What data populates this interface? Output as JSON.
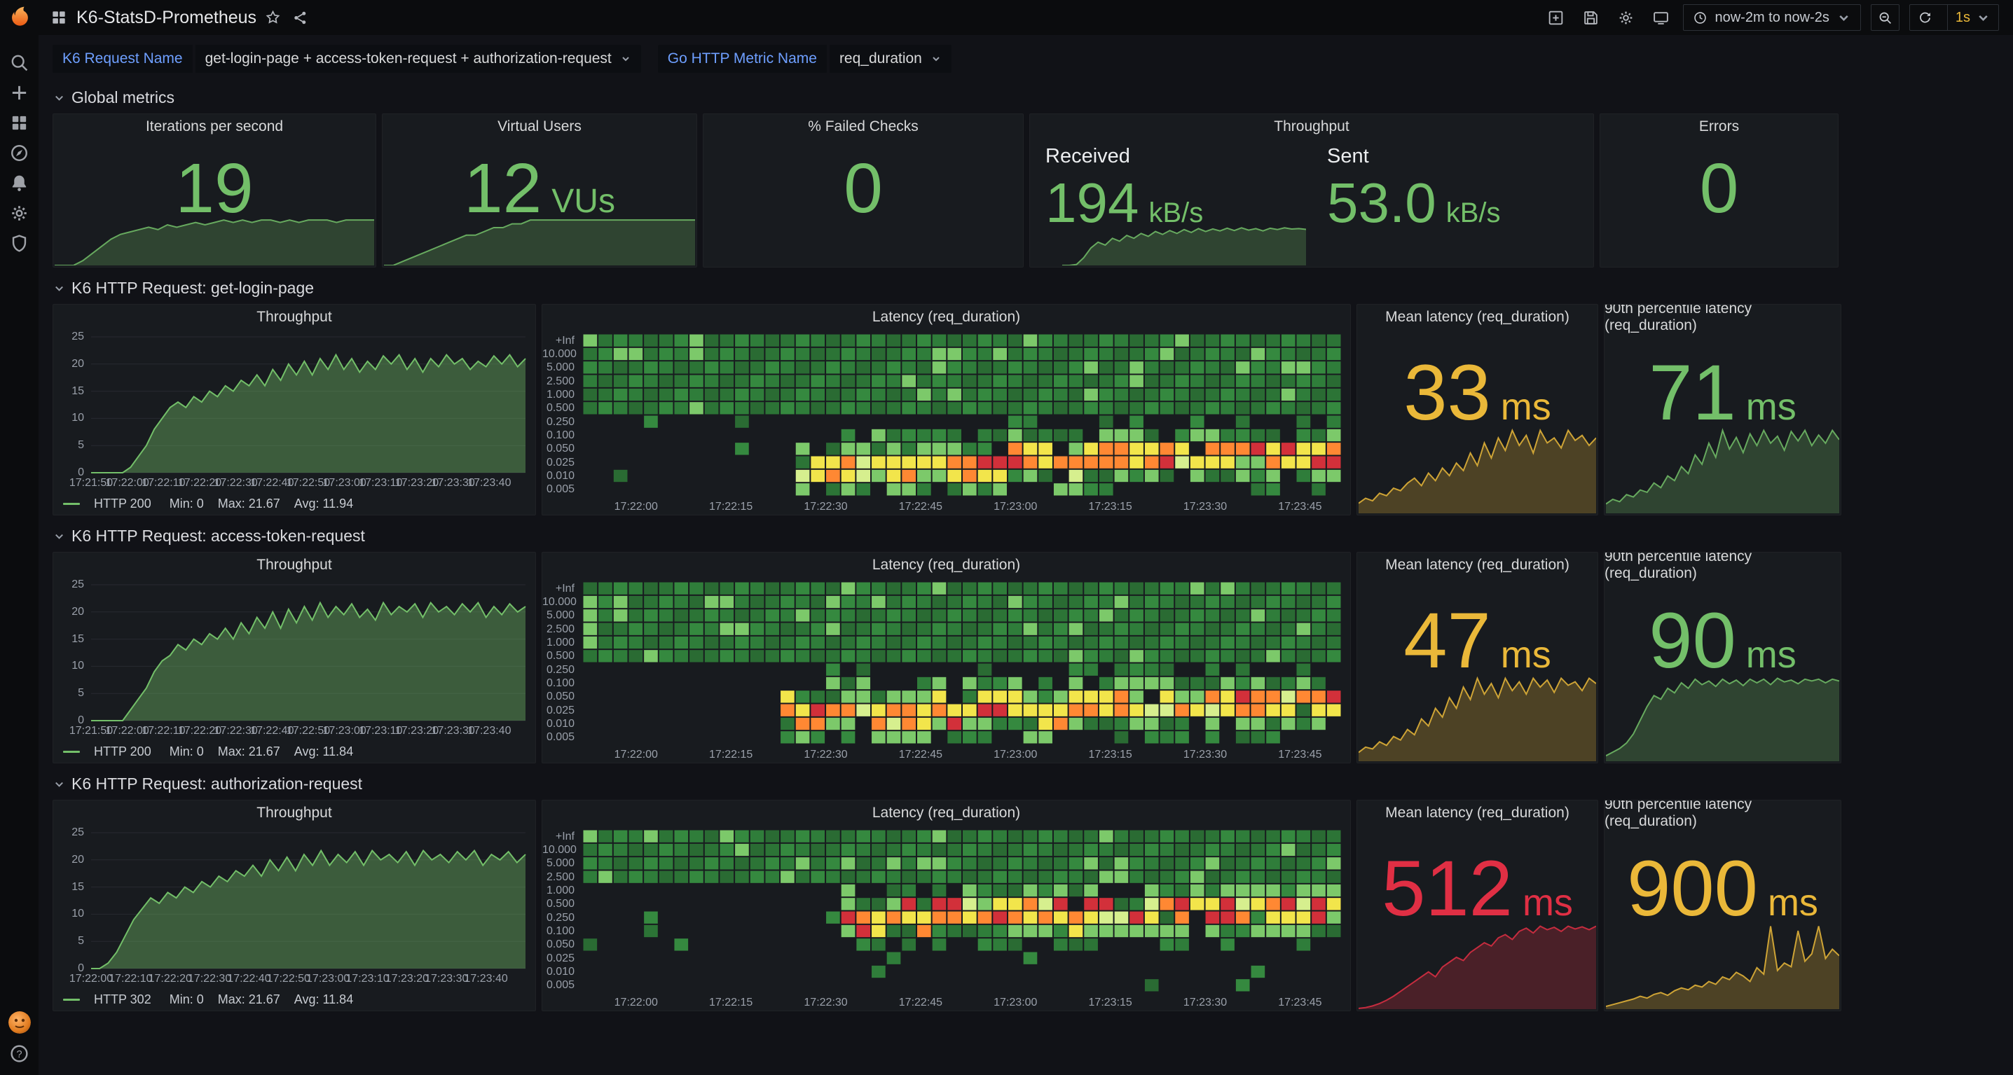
{
  "nav": {
    "title": "K6-StatsD-Prometheus",
    "time_range": "now-2m to now-2s",
    "refresh_interval": "1s"
  },
  "variables": [
    {
      "label": "K6 Request Name",
      "value": "get-login-page + access-token-request + authorization-request"
    },
    {
      "label": "Go HTTP Metric Name",
      "value": "req_duration"
    }
  ],
  "colors": {
    "green": "#73bf69",
    "yellow": "#eab839",
    "red": "#e02f44",
    "accent_blue": "#6e9fff",
    "panel_bg": "#181b1f",
    "page_bg": "#111217",
    "chrome_bg": "#0b0c0e",
    "heatmap": {
      "greens": [
        "#2a6b33",
        "#2f7d3a",
        "#35893f",
        "#2c7436"
      ],
      "light_green": "#7cc96a",
      "pale": "#d6ef8e",
      "yellow": "#f2e54b",
      "orange": "#ff8833",
      "red": "#d2303a"
    }
  },
  "global": {
    "label": "Global metrics",
    "panels": {
      "iterations": {
        "title": "Iterations per second",
        "value": "19",
        "color": "#73bf69",
        "spark": [
          0,
          0,
          0,
          2,
          5,
          8,
          11,
          13,
          14,
          15,
          16,
          15,
          17,
          16,
          17,
          18,
          17,
          18,
          19,
          18,
          19,
          18,
          19,
          19,
          18,
          19,
          18,
          19,
          19,
          19,
          18,
          19,
          19,
          19,
          19
        ]
      },
      "vus": {
        "title": "Virtual Users",
        "value": "12",
        "unit": "VUs",
        "color": "#73bf69",
        "spark": [
          0,
          0,
          1,
          2,
          3,
          4,
          5,
          6,
          7,
          8,
          8,
          9,
          10,
          10,
          11,
          11,
          12,
          12,
          12,
          12,
          12,
          12,
          12,
          12,
          12,
          12,
          12,
          12,
          12,
          12,
          12,
          12,
          12,
          12,
          12
        ]
      },
      "failed": {
        "title": "% Failed Checks",
        "value": "0",
        "color": "#73bf69"
      },
      "throughput": {
        "title": "Throughput",
        "color": "#73bf69",
        "fields": [
          {
            "label": "Received",
            "value": "194",
            "unit": "kB/s",
            "color": "#73bf69",
            "spark": [
              0,
              0,
              5,
              40,
              90,
              120,
              105,
              140,
              125,
              155,
              140,
              165,
              150,
              175,
              160,
              180,
              165,
              185,
              170,
              190,
              175,
              188,
              178,
              192,
              180,
              194,
              182,
              190,
              178,
              192,
              185,
              194,
              188,
              190,
              186
            ]
          },
          {
            "label": "Sent",
            "value": "53.0",
            "unit": "kB/s",
            "color": "#73bf69"
          }
        ]
      },
      "errors": {
        "title": "Errors",
        "value": "0",
        "color": "#73bf69"
      }
    }
  },
  "sections": [
    {
      "label": "K6 HTTP Request: get-login-page",
      "throughput": {
        "title": "Throughput",
        "type": "area",
        "color": "#73bf69",
        "y_ticks": [
          0,
          5,
          10,
          15,
          20,
          25
        ],
        "x_labels": [
          "17:21:50",
          "17:22:00",
          "17:22:10",
          "17:22:20",
          "17:22:30",
          "17:22:40",
          "17:22:50",
          "17:23:00",
          "17:23:10",
          "17:23:20",
          "17:23:30",
          "17:23:40"
        ],
        "values": [
          0,
          0,
          0,
          0,
          0,
          1,
          3,
          5,
          8,
          10,
          12,
          13,
          12,
          14,
          13,
          15,
          14,
          16,
          15,
          17,
          16,
          18,
          16,
          19,
          17,
          20,
          18,
          20.5,
          18,
          21,
          19,
          21.7,
          19,
          21,
          18.5,
          20.5,
          19,
          21.5,
          20,
          21.7,
          19,
          21,
          18.5,
          21,
          19.5,
          21.7,
          20,
          21,
          19,
          20.5,
          19.5,
          21.5,
          20,
          21.7,
          19.5,
          21
        ],
        "legend": {
          "name": "HTTP 200",
          "stats": [
            "Min: 0",
            "Max: 21.67",
            "Avg: 11.94"
          ]
        }
      },
      "latency": {
        "title": "Latency (req_duration)",
        "type": "heatmap",
        "y_labels": [
          "+Inf",
          "10.000",
          "5.000",
          "2.500",
          "1.000",
          "0.500",
          "0.250",
          "0.100",
          "0.050",
          "0.025",
          "0.010",
          "0.005"
        ],
        "x_labels": [
          "17:22:00",
          "17:22:15",
          "17:22:30",
          "17:22:45",
          "17:23:00",
          "17:23:15",
          "17:23:30",
          "17:23:45"
        ],
        "columns": 50,
        "seed": 7,
        "solid_row_end": 5,
        "band_start_col": 14,
        "band_center_start": 9.6,
        "band_center_end": 8.2,
        "red_prob": 0.13
      },
      "mean": {
        "title": "Mean latency (req_duration)",
        "value": "33",
        "unit": "ms",
        "color": "#eab839",
        "spark": [
          4,
          6,
          5,
          8,
          7,
          10,
          9,
          12,
          14,
          11,
          16,
          13,
          18,
          15,
          20,
          17,
          24,
          19,
          28,
          22,
          30,
          25,
          33,
          27,
          31,
          24,
          33,
          28,
          30,
          26,
          33,
          29,
          31,
          27,
          30
        ]
      },
      "p90": {
        "title": "90th percentile latency (req_duration)",
        "value": "71",
        "unit": "ms",
        "color": "#73bf69",
        "spark": [
          8,
          12,
          10,
          16,
          14,
          20,
          18,
          26,
          22,
          32,
          28,
          40,
          34,
          50,
          42,
          60,
          48,
          71,
          55,
          65,
          52,
          68,
          58,
          71,
          60,
          66,
          54,
          70,
          62,
          71,
          58,
          67,
          60,
          71,
          63
        ]
      }
    },
    {
      "label": "K6 HTTP Request: access-token-request",
      "throughput": {
        "title": "Throughput",
        "type": "area",
        "color": "#73bf69",
        "y_ticks": [
          0,
          5,
          10,
          15,
          20,
          25
        ],
        "x_labels": [
          "17:21:50",
          "17:22:00",
          "17:22:10",
          "17:22:20",
          "17:22:30",
          "17:22:40",
          "17:22:50",
          "17:23:00",
          "17:23:10",
          "17:23:20",
          "17:23:30",
          "17:23:40"
        ],
        "values": [
          0,
          0,
          0,
          0,
          0,
          2,
          4,
          6,
          9,
          11,
          12,
          14,
          13,
          15,
          14,
          16,
          15,
          17,
          15,
          18,
          16,
          19,
          17,
          20,
          17,
          20.5,
          18,
          21,
          18.5,
          21.7,
          19,
          21,
          19.5,
          21.5,
          19,
          20.5,
          18.5,
          21.7,
          19.5,
          21,
          20,
          21.5,
          19,
          21.7,
          20,
          21,
          19.5,
          21.5,
          20,
          21.7,
          19,
          21,
          19.5,
          21.5,
          20,
          21
        ],
        "legend": {
          "name": "HTTP 200",
          "stats": [
            "Min: 0",
            "Max: 21.67",
            "Avg: 11.84"
          ]
        }
      },
      "latency": {
        "title": "Latency (req_duration)",
        "type": "heatmap",
        "y_labels": [
          "+Inf",
          "10.000",
          "5.000",
          "2.500",
          "1.000",
          "0.500",
          "0.250",
          "0.100",
          "0.050",
          "0.025",
          "0.010",
          "0.005"
        ],
        "x_labels": [
          "17:22:00",
          "17:22:15",
          "17:22:30",
          "17:22:45",
          "17:23:00",
          "17:23:15",
          "17:23:30",
          "17:23:45"
        ],
        "columns": 50,
        "seed": 13,
        "solid_row_end": 5,
        "band_start_col": 13,
        "band_center_start": 9.2,
        "band_center_end": 8.4,
        "red_prob": 0.12
      },
      "mean": {
        "title": "Mean latency (req_duration)",
        "value": "47",
        "unit": "ms",
        "color": "#eab839",
        "spark": [
          5,
          8,
          7,
          11,
          9,
          14,
          12,
          18,
          15,
          24,
          20,
          30,
          25,
          36,
          30,
          42,
          35,
          47,
          38,
          44,
          36,
          47,
          40,
          45,
          38,
          47,
          42,
          46,
          39,
          47,
          43,
          45,
          40,
          47,
          44
        ]
      },
      "p90": {
        "title": "90th percentile latency (req_duration)",
        "value": "90",
        "unit": "ms",
        "color": "#73bf69",
        "spark": [
          6,
          10,
          14,
          20,
          30,
          45,
          60,
          72,
          68,
          80,
          75,
          86,
          80,
          90,
          84,
          88,
          82,
          90,
          85,
          89,
          83,
          90,
          86,
          90,
          84,
          91,
          87,
          89,
          85,
          90,
          88,
          90,
          86,
          90,
          88
        ]
      }
    },
    {
      "label": "K6 HTTP Request: authorization-request",
      "throughput": {
        "title": "Throughput",
        "type": "area",
        "color": "#73bf69",
        "y_ticks": [
          0,
          5,
          10,
          15,
          20,
          25
        ],
        "x_labels": [
          "17:22:00",
          "17:22:10",
          "17:22:20",
          "17:22:30",
          "17:22:40",
          "17:22:50",
          "17:23:00",
          "17:23:10",
          "17:23:20",
          "17:23:30",
          "17:23:40"
        ],
        "values": [
          0,
          0,
          1,
          3,
          6,
          9,
          11,
          13,
          12,
          14,
          13,
          15,
          14,
          16,
          15,
          17,
          16,
          18,
          17,
          19,
          17,
          20,
          18,
          20.5,
          18,
          21,
          19,
          21.7,
          19,
          21,
          19.5,
          21.5,
          19,
          21.7,
          20,
          21,
          19.5,
          21.5,
          19,
          21.7,
          20,
          21,
          19.5,
          21.5,
          20,
          21.7,
          19,
          21,
          20,
          21.5,
          19.5,
          21
        ],
        "legend": {
          "name": "HTTP 302",
          "stats": [
            "Min: 0",
            "Max: 21.67",
            "Avg: 11.84"
          ]
        }
      },
      "latency": {
        "title": "Latency (req_duration)",
        "type": "heatmap",
        "y_labels": [
          "+Inf",
          "10.000",
          "5.000",
          "2.500",
          "1.000",
          "0.500",
          "0.250",
          "0.100",
          "0.050",
          "0.025",
          "0.010",
          "0.005"
        ],
        "x_labels": [
          "17:22:00",
          "17:22:15",
          "17:22:30",
          "17:22:45",
          "17:23:00",
          "17:23:15",
          "17:23:30",
          "17:23:45"
        ],
        "columns": 50,
        "seed": 23,
        "solid_row_end": 3,
        "band_start_col": 17,
        "band_center_start": 6.2,
        "band_center_end": 5.1,
        "red_prob": 0.2
      },
      "mean": {
        "title": "Mean latency (req_duration)",
        "value": "512",
        "unit": "ms",
        "color": "#e02f44",
        "spark": [
          5,
          10,
          20,
          35,
          55,
          80,
          110,
          140,
          170,
          200,
          230,
          200,
          260,
          290,
          320,
          300,
          350,
          380,
          410,
          390,
          440,
          460,
          430,
          480,
          500,
          470,
          512,
          490,
          505,
          480,
          512,
          495,
          508,
          490,
          512
        ]
      },
      "p90": {
        "title": "90th percentile latency (req_duration)",
        "value": "900",
        "unit": "ms",
        "color": "#eab839",
        "spark": [
          30,
          50,
          70,
          90,
          110,
          140,
          120,
          160,
          180,
          150,
          200,
          230,
          210,
          260,
          240,
          300,
          270,
          350,
          320,
          400,
          360,
          300,
          450,
          380,
          900,
          420,
          500,
          460,
          850,
          520,
          600,
          900,
          550,
          650,
          580
        ]
      }
    }
  ]
}
